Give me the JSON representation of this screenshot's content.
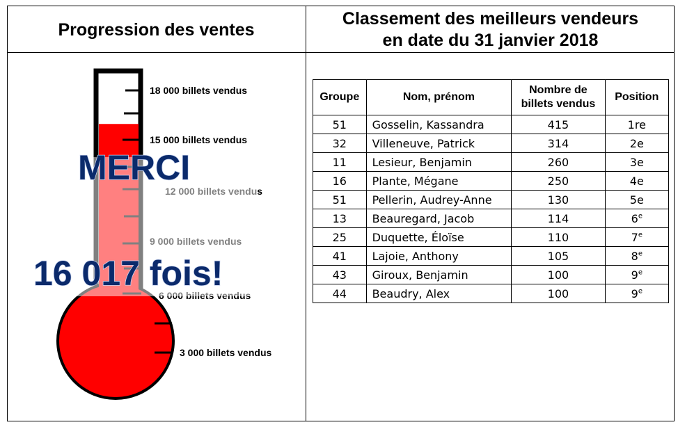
{
  "left_header": "Progression des ventes",
  "right_header": {
    "line1": "Classement des meilleurs vendeurs",
    "line2": "en date du 31 janvier 2018"
  },
  "thermometer": {
    "labels": [
      "18 000  billets vendus",
      "15 000  billets vendus",
      "12 000  billets vendus",
      "9 000  billets vendus",
      "6 000  billets vendus",
      "3 000  billets vendus"
    ],
    "current_value": 16017,
    "max_value": 18000,
    "overlay_line1": "MERCI",
    "overlay_line2": "16 017 fois!",
    "fill_color": "#ff0000"
  },
  "table": {
    "headers": [
      "Groupe",
      "Nom, prénom",
      "Nombre de billets vendus",
      "Position"
    ],
    "rows": [
      {
        "groupe": "51",
        "nom": "Gosselin, Kassandra",
        "billets": "415",
        "position": "1re",
        "sup": false
      },
      {
        "groupe": "32",
        "nom": "Villeneuve, Patrick",
        "billets": "314",
        "position": "2e",
        "sup": false
      },
      {
        "groupe": "11",
        "nom": "Lesieur, Benjamin",
        "billets": "260",
        "position": "3e",
        "sup": false
      },
      {
        "groupe": "16",
        "nom": "Plante, Mégane",
        "billets": "250",
        "position": "4e",
        "sup": false
      },
      {
        "groupe": "51",
        "nom": "Pellerin, Audrey-Anne",
        "billets": "130",
        "position": "5e",
        "sup": false
      },
      {
        "groupe": "13",
        "nom": "Beauregard, Jacob",
        "billets": "114",
        "position": "6",
        "sup": true
      },
      {
        "groupe": "25",
        "nom": "Duquette, Éloïse",
        "billets": "110",
        "position": "7",
        "sup": true
      },
      {
        "groupe": "41",
        "nom": "Lajoie, Anthony",
        "billets": "105",
        "position": "8",
        "sup": true
      },
      {
        "groupe": "43",
        "nom": "Giroux, Benjamin",
        "billets": "100",
        "position": "9",
        "sup": true
      },
      {
        "groupe": "44",
        "nom": "Beaudry, Alex",
        "billets": "100",
        "position": "9",
        "sup": true
      }
    ]
  }
}
